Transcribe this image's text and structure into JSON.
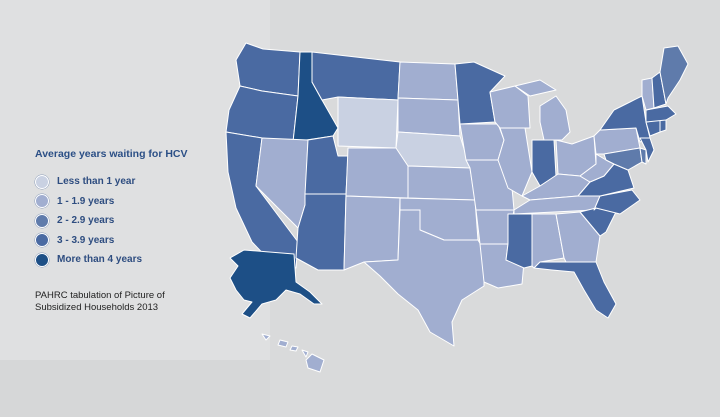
{
  "legend": {
    "title": "Average years waiting for HCV",
    "items": [
      {
        "label": "Less than 1 year",
        "color": "#c9d1e2"
      },
      {
        "label": "1 - 1.9 years",
        "color": "#a1aed0"
      },
      {
        "label": "2 - 2.9 years",
        "color": "#5f7bab"
      },
      {
        "label": "3 - 3.9 years",
        "color": "#4a6aa2"
      },
      {
        "label": "More than 4 years",
        "color": "#1d4f86"
      }
    ]
  },
  "source": {
    "line1": "PAHRC tabulation of Picture of",
    "line2": "Subsidized Households 2013"
  },
  "states": {
    "WA": 3,
    "OR": 3,
    "CA": 3,
    "ID": 4,
    "NV": 1,
    "UT": 3,
    "AZ": 3,
    "MT": 3,
    "WY": 0,
    "CO": 1,
    "NM": 1,
    "ND": 1,
    "SD": 1,
    "NE": 0,
    "KS": 1,
    "OK": 1,
    "TX": 1,
    "MN": 3,
    "IA": 1,
    "MO": 1,
    "AR": 1,
    "LA": 1,
    "WI": 1,
    "IL": 1,
    "MI": 1,
    "IN": 3,
    "OH": 1,
    "KY": 1,
    "TN": 1,
    "MS": 3,
    "AL": 1,
    "GA": 1,
    "FL": 3,
    "SC": 3,
    "NC": 3,
    "VA": 3,
    "WV": 1,
    "PA": 1,
    "NY": 3,
    "ME": 2,
    "VT": 1,
    "NH": 3,
    "MA": 3,
    "CT": 3,
    "RI": 3,
    "NJ": 3,
    "DE": 2,
    "MD": 2,
    "AK": 4,
    "HI": 1
  }
}
